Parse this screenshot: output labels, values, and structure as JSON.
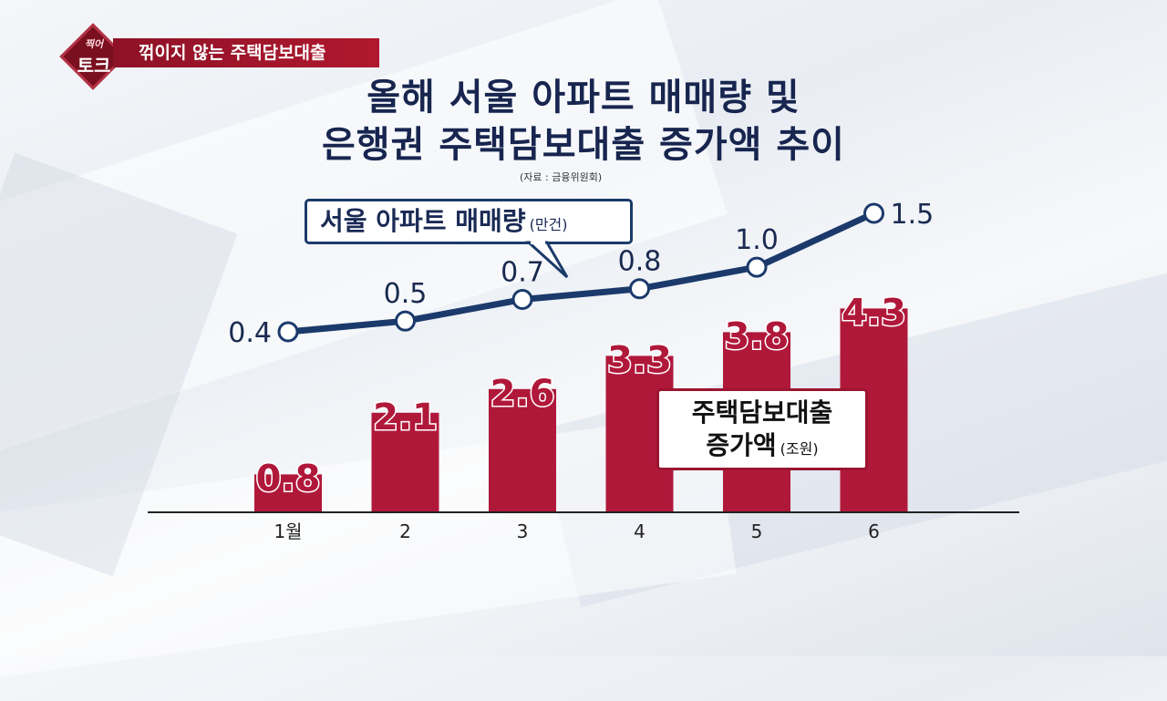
{
  "badge": {
    "top_text": "찍어",
    "main_text": "토크"
  },
  "banner": {
    "text": "꺾이지 않는 주택담보대출"
  },
  "title_line1": "올해 서울 아파트 매매량 및",
  "title_line2": "은행권 주택담보대출 증가액 추이",
  "source": "(자료 : 금융위원회)",
  "line_callout": {
    "label": "서울 아파트 매매량",
    "unit": "(만건)"
  },
  "bar_callout": {
    "line1": "주택담보대출",
    "line2": "증가액",
    "unit": "(조원)"
  },
  "colors": {
    "bar": "#b0183a",
    "line": "#1b3a6b",
    "title": "#17254f"
  },
  "chart_data": {
    "type": "bar",
    "categories": [
      "1월",
      "2",
      "3",
      "4",
      "5",
      "6"
    ],
    "series": [
      {
        "name": "주택담보대출 증가액",
        "type": "bar",
        "unit": "조원",
        "values": [
          0.8,
          2.1,
          2.6,
          3.3,
          3.8,
          4.3
        ]
      },
      {
        "name": "서울 아파트 매매량",
        "type": "line",
        "unit": "만건",
        "values": [
          0.4,
          0.5,
          0.7,
          0.8,
          1.0,
          1.5
        ]
      }
    ],
    "value_labels_bar": [
      "0.8",
      "2.1",
      "2.6",
      "3.3",
      "3.8",
      "4.3"
    ],
    "value_labels_line": [
      "0.4",
      "0.5",
      "0.7",
      "0.8",
      "1.0",
      "1.5"
    ],
    "grid": false,
    "legend": "callouts"
  }
}
